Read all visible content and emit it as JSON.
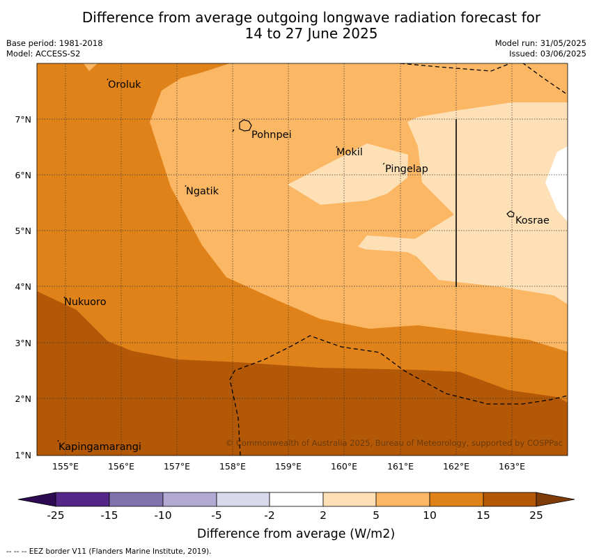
{
  "header": {
    "title_line1": "Difference from average outgoing longwave radiation forecast for",
    "title_line2": "14 to 27 June 2025",
    "base_period": "Base period: 1981-2018",
    "model": "Model: ACCESS-S2",
    "model_run": "Model run: 31/05/2025",
    "issued": "Issued: 03/06/2025"
  },
  "map": {
    "lat_labels": [
      "7°N",
      "6°N",
      "5°N",
      "4°N",
      "3°N",
      "2°N",
      "1°N"
    ],
    "lon_labels": [
      "155°E",
      "156°E",
      "157°E",
      "158°E",
      "159°E",
      "160°E",
      "161°E",
      "162°E",
      "163°E"
    ],
    "places": {
      "oroluk": "Oroluk",
      "pohnpei": "Pohnpei",
      "mokil": "Mokil",
      "pingelap": "Pingelap",
      "ngatik": "Ngatik",
      "kosrae": "Kosrae",
      "nukuoro": "Nukuoro",
      "kapingamarangi": "Kapingamarangi"
    },
    "copyright": "© Commonwealth of Australia 2025, Bureau of Meteorology, supported by COSPPac"
  },
  "legend": {
    "tick_labels": [
      "-25",
      "-15",
      "-10",
      "-5",
      "-2",
      "2",
      "5",
      "10",
      "15",
      "25"
    ],
    "colors": [
      "#2d0a52",
      "#542687",
      "#8072ac",
      "#b3aad3",
      "#d9d9ec",
      "#ffffff",
      "#fee0b6",
      "#fbb763",
      "#e0821a",
      "#b35806",
      "#7f3b08"
    ],
    "title": "Difference from average (W/m2)"
  },
  "footnote": "--  --  -- EEZ border V11 (Flanders Marine Institute, 2019)."
}
